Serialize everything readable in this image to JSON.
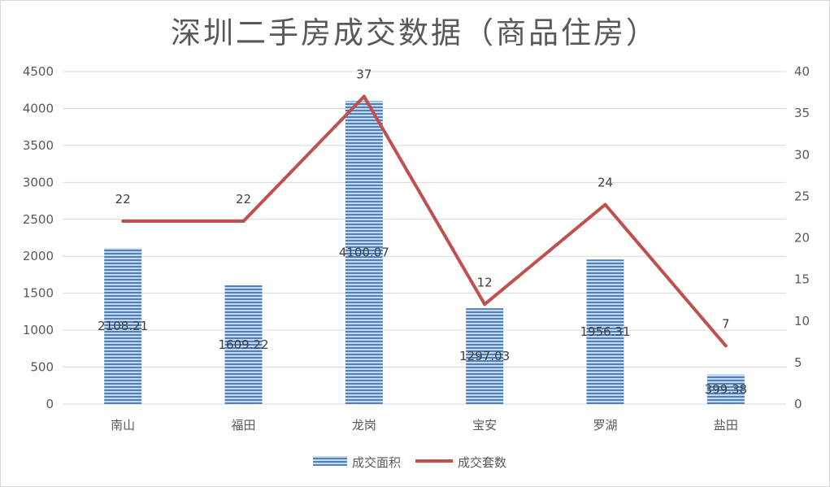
{
  "chart_data": {
    "type": "bar",
    "title": "深圳二手房成交数据（商品住房）",
    "categories": [
      "南山",
      "福田",
      "龙岗",
      "宝安",
      "罗湖",
      "盐田"
    ],
    "series": [
      {
        "name": "成交面积",
        "type": "bar",
        "axis": "left",
        "color": "#5b8fd0",
        "values": [
          2108.21,
          1609.22,
          4100.07,
          1297.03,
          1956.31,
          399.38
        ],
        "labels": [
          "2108.21",
          "1609.22",
          "4100.07",
          "1297.03",
          "1956.31",
          "399.38"
        ]
      },
      {
        "name": "成交套数",
        "type": "line",
        "axis": "right",
        "color": "#c0504d",
        "values": [
          22,
          22,
          37,
          12,
          24,
          7
        ],
        "labels": [
          "22",
          "22",
          "37",
          "12",
          "24",
          "7"
        ]
      }
    ],
    "y_left": {
      "min": 0,
      "max": 4500,
      "ticks": [
        "0",
        "500",
        "1000",
        "1500",
        "2000",
        "2500",
        "3000",
        "3500",
        "4000",
        "4500"
      ]
    },
    "y_right": {
      "min": 0,
      "max": 40,
      "ticks": [
        "0",
        "5",
        "10",
        "15",
        "20",
        "25",
        "30",
        "35",
        "40"
      ]
    },
    "grid": true,
    "legend_position": "bottom"
  }
}
